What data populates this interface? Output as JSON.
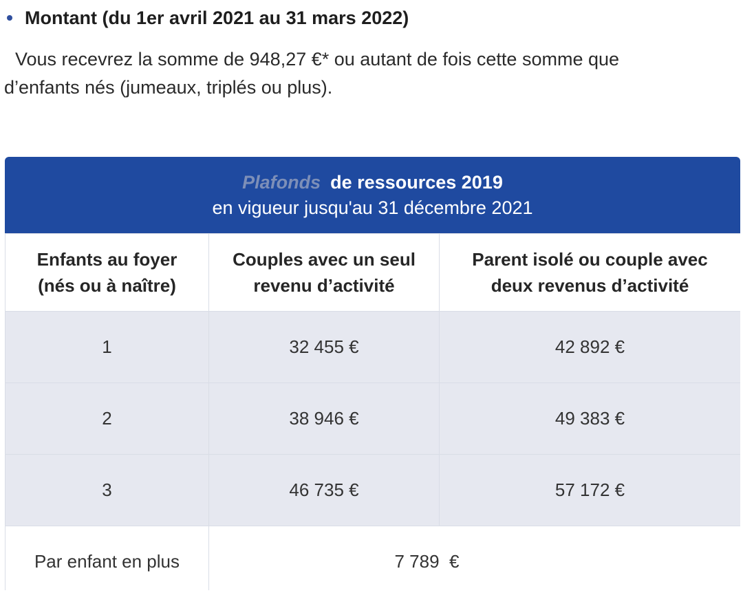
{
  "heading": {
    "text": "Montant (du 1er avril 2021 au 31 mars 2022)"
  },
  "paragraph": {
    "line1": "Vous recevrez la somme de 948,27 €* ou autant de fois cette somme que",
    "line2": "d’enfants nés (jumeaux, triplés ou plus)."
  },
  "banner": {
    "faded": "Plafonds",
    "title": "de ressources 2019",
    "subtitle": "en vigueur jusqu'au 31 décembre 2021"
  },
  "table": {
    "headers": [
      [
        "Enfants au foyer",
        "(nés ou à naître)"
      ],
      [
        "Couples avec un seul",
        "revenu d’activité"
      ],
      [
        "Parent isolé ou couple avec",
        "deux revenus d’activité"
      ]
    ],
    "rows": [
      [
        "1",
        "32 455 €",
        "42 892 €"
      ],
      [
        "2",
        "38 946 €",
        "49 383 €"
      ],
      [
        "3",
        "46 735 €",
        "57 172 €"
      ]
    ],
    "footer": {
      "label": "Par enfant en plus",
      "value": "7 789  €"
    }
  },
  "colors": {
    "banner": "#1f4aa0",
    "row_shade": "#e6e8f0",
    "bullet": "#2f4f9e"
  }
}
